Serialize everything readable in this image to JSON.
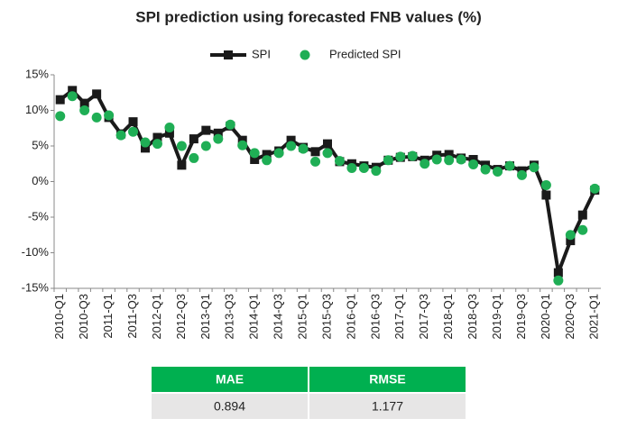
{
  "chart_data": {
    "type": "line",
    "title": "SPI prediction using forecasted FNB values (%)",
    "categories": [
      "2010-Q1",
      null,
      "2010-Q3",
      null,
      "2011-Q1",
      null,
      "2011-Q3",
      null,
      "2012-Q1",
      null,
      "2012-Q3",
      null,
      "2013-Q1",
      null,
      "2013-Q3",
      null,
      "2014-Q1",
      null,
      "2014-Q3",
      null,
      "2015-Q1",
      null,
      "2015-Q3",
      null,
      "2016-Q1",
      null,
      "2016-Q3",
      null,
      "2017-Q1",
      null,
      "2017-Q3",
      null,
      "2018-Q1",
      null,
      "2018-Q3",
      null,
      "2019-Q1",
      null,
      "2019-Q3",
      null,
      "2020-Q1",
      null,
      "2020-Q3",
      null,
      "2021-Q1"
    ],
    "series": [
      {
        "name": "SPI",
        "color": "#1a1a1a",
        "values": [
          11.5,
          12.8,
          11,
          12.3,
          9,
          6.7,
          8.4,
          4.7,
          6.2,
          6.8,
          2.3,
          6,
          7.2,
          6.8,
          7.8,
          5.8,
          3.1,
          3.8,
          4.3,
          5.8,
          4.8,
          4.2,
          5.3,
          2.8,
          2.5,
          2.2,
          2,
          3,
          3.4,
          3.5,
          3,
          3.7,
          3.8,
          3.3,
          3.1,
          2.3,
          1.7,
          2.2,
          1.5,
          2.3,
          -1.9,
          -12.8,
          -8.3,
          -4.7,
          -1.2
        ]
      },
      {
        "name": "Predicted SPI",
        "color": "#1fae55",
        "values": [
          9.2,
          12,
          10,
          9,
          9.3,
          6.5,
          7,
          5.5,
          5.3,
          7.6,
          5,
          3.3,
          5,
          6,
          8,
          5.1,
          4,
          3,
          4,
          5,
          4.6,
          2.8,
          4,
          2.9,
          1.9,
          1.9,
          1.5,
          3,
          3.5,
          3.6,
          2.5,
          3.1,
          3,
          3.1,
          2.4,
          1.7,
          1.4,
          2.2,
          0.9,
          2,
          -0.5,
          -13.9,
          -7.5,
          -6.8,
          -1
        ]
      }
    ],
    "ylim": [
      -15,
      15
    ],
    "yticks": [
      {
        "value": -15,
        "label": "-15%"
      },
      {
        "value": -10,
        "label": "-10%"
      },
      {
        "value": -5,
        "label": "-5%"
      },
      {
        "value": 0,
        "label": "0%"
      },
      {
        "value": 5,
        "label": "5%"
      },
      {
        "value": 10,
        "label": "10%"
      },
      {
        "value": 15,
        "label": "15%"
      }
    ],
    "legend": "top"
  },
  "table": {
    "header": [
      "MAE",
      "RMSE"
    ],
    "rows": [
      [
        "0.894",
        "1.177"
      ]
    ]
  }
}
